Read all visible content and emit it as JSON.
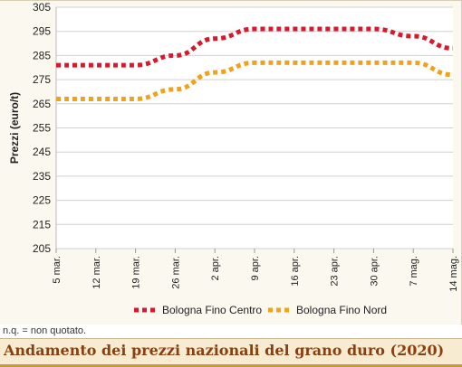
{
  "chart_data": {
    "type": "line",
    "title": "Andamento dei prezzi nazionali del grano duro (2020)",
    "ylabel": "Prezzi (euro/t)",
    "xlabel": "",
    "ylim": [
      205,
      305
    ],
    "yticks": [
      205,
      215,
      225,
      235,
      245,
      255,
      265,
      275,
      285,
      295,
      305
    ],
    "categories": [
      "5 mar.",
      "12 mar.",
      "19 mar.",
      "26 mar.",
      "2 apr.",
      "9 apr.",
      "16 apr.",
      "23 apr.",
      "30 apr.",
      "7 mag.",
      "14 mag."
    ],
    "series": [
      {
        "name": "Bologna Fino Centro",
        "color": "#d7192d",
        "values": [
          281,
          281,
          281,
          285,
          292,
          296,
          296,
          296,
          296,
          293,
          288
        ]
      },
      {
        "name": "Bologna Fino Nord",
        "color": "#f0a21c",
        "values": [
          267,
          267,
          267,
          271,
          278,
          282,
          282,
          282,
          282,
          282,
          277
        ]
      }
    ],
    "grid": true,
    "legend_position": "bottom"
  },
  "note": "n.q. = non quotato."
}
